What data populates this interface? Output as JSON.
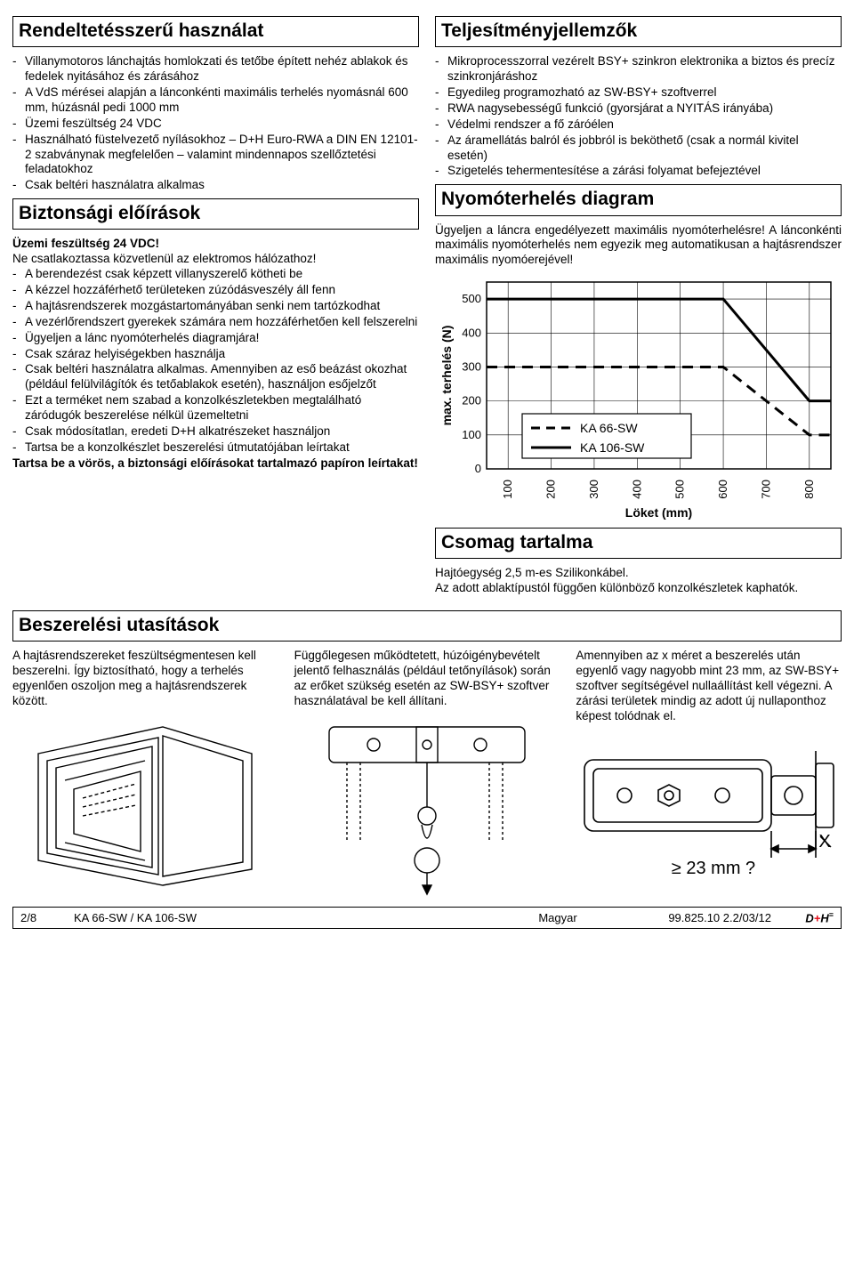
{
  "sections": {
    "intended_use": {
      "title": "Rendeltetésszerű használat"
    },
    "safety": {
      "title": "Biztonsági előírások"
    },
    "performance": {
      "title": "Teljesítményjellemzők"
    },
    "load_diagram": {
      "title": "Nyomóterhelés diagram"
    },
    "package": {
      "title": "Csomag tartalma"
    },
    "install": {
      "title": "Beszerelési utasítások"
    }
  },
  "intended_use_items": [
    "Villanymotoros lánchajtás homlokzati és tetőbe épített nehéz ablakok és fedelek nyitásához és zárásához",
    "A VdS mérései alapján a lánconkénti maximális terhelés nyomásnál 600 mm, húzásnál pedi 1000 mm",
    "Üzemi feszültség 24 VDC",
    "Használható füstelvezető nyílásokhoz – D+H Euro-RWA a DIN EN 12101-2 szabványnak megfelelően – valamint mindennapos szellőztetési feladatokhoz",
    "Csak beltéri használatra alkalmas"
  ],
  "safety_heading": "Üzemi feszültség 24 VDC!",
  "safety_intro": "Ne csatlakoztassa közvetlenül az elektromos hálózathoz!",
  "safety_items": [
    "A berendezést csak képzett villanyszerelő kötheti be",
    "A kézzel hozzáférhető területeken zúzódásveszély áll fenn",
    "A hajtásrendszerek mozgástartományában senki nem tartózkodhat",
    "A vezérlőrendszert gyerekek számára nem hozzáférhetően kell felszerelni",
    "Ügyeljen a lánc nyomóterhelés diagramjára!",
    "Csak száraz helyiségekben használja",
    "Csak beltéri használatra alkalmas. Amennyiben az eső beázást okozhat (például felülvilágítók és tetőablakok esetén), használjon esőjelzőt",
    "Ezt a terméket nem szabad a konzolkészletekben megtalálható záródugók beszerelése nélkül üzemeltetni",
    "Csak módosítatlan, eredeti D+H alkatrészeket használjon",
    "Tartsa be a konzolkészlet beszerelési útmutatójában leírtakat"
  ],
  "safety_footer": "Tartsa be a vörös, a biztonsági előírásokat tartalmazó papíron leírtakat!",
  "performance_items": [
    "Mikroprocesszorral vezérelt BSY+ szinkron elektronika a biztos és precíz szinkronjáráshoz",
    "Egyedileg programozható az SW-BSY+ szoftverrel",
    "RWA nagysebességű funkció (gyorsjárat a NYITÁS irányába)",
    "Védelmi rendszer a fő záróélen",
    "Az áramellátás balról és jobbról is beköthető (csak a normál kivitel esetén)",
    "Szigetelés tehermentesítése a zárási folyamat befejeztével"
  ],
  "load_diagram_text": "Ügyeljen a láncra engedélyezett maximális nyomóterhelésre! A lánconkénti maximális nyomóterhelés nem egyezik meg automatikusan a hajtásrendszer maximális nyomóerejével!",
  "chart": {
    "type": "line",
    "y_label": "max. terhelés (N)",
    "x_label": "Löket (mm)",
    "x_ticks": [
      100,
      200,
      300,
      400,
      500,
      600,
      700,
      800
    ],
    "y_ticks": [
      0,
      100,
      200,
      300,
      400,
      500
    ],
    "xlim": [
      50,
      850
    ],
    "ylim": [
      0,
      550
    ],
    "series": [
      {
        "name": "KA 66-SW",
        "dash": true,
        "color": "#000000",
        "width": 3,
        "points": [
          [
            50,
            300
          ],
          [
            600,
            300
          ],
          [
            800,
            100
          ],
          [
            850,
            100
          ]
        ]
      },
      {
        "name": "KA 106-SW",
        "dash": false,
        "color": "#000000",
        "width": 3,
        "points": [
          [
            50,
            500
          ],
          [
            600,
            500
          ],
          [
            800,
            200
          ],
          [
            850,
            200
          ]
        ]
      }
    ],
    "grid_color": "#000000",
    "background": "#ffffff",
    "axis_fontsize": 13,
    "label_fontsize": 14
  },
  "package_text1": "Hajtóegység 2,5 m-es Szilikonkábel.",
  "package_text2": "Az adott ablaktípustól függően különböző konzolkészletek kaphatók.",
  "install_cols": [
    "A hajtásrendszereket feszültségmentesen kell beszerelni. Így biztosítható, hogy a terhelés egyenlően oszoljon meg a hajtásrendszerek között.",
    "Függőlegesen működtetett, húzóigénybevételt jelentő felhasználás (például tetőnyílások) során az erőket szükség esetén az SW-BSY+ szoftver használatával be kell állítani.",
    "Amennyiben az x méret a beszerelés után egyenlő vagy nagyobb mint 23 mm, az SW-BSY+ szoftver segítségével nullaállítást kell végezni. A zárási területek mindig az adott új nullaponthoz képest tolódnak el."
  ],
  "dimension_label": "≥ 23 mm ?",
  "dimension_x": "X",
  "footer": {
    "page": "2/8",
    "model": "KA 66-SW / KA 106-SW",
    "lang": "Magyar",
    "doc": "99.825.10 2.2/03/12",
    "logo": "D+H"
  }
}
